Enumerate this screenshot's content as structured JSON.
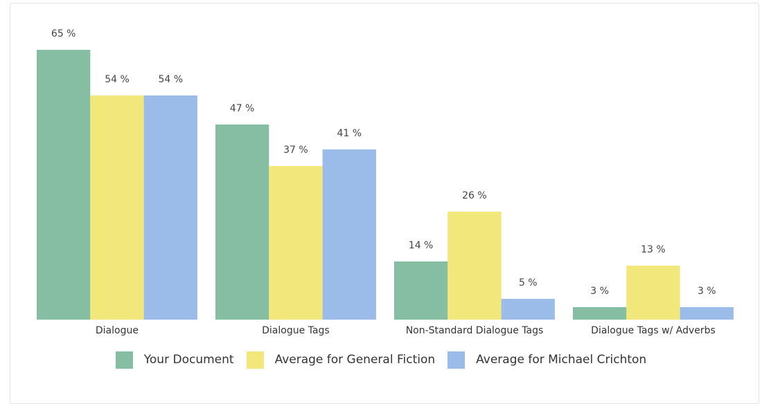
{
  "chart_data": {
    "type": "bar",
    "categories": [
      "Dialogue",
      "Dialogue Tags",
      "Non-Standard Dialogue Tags",
      "Dialogue Tags w/ Adverbs"
    ],
    "series": [
      {
        "name": "Your Document",
        "color": "#85bea3",
        "values": [
          65,
          47,
          14,
          3
        ],
        "labels": [
          "65 %",
          "47 %",
          "14 %",
          "3 %"
        ]
      },
      {
        "name": "Average for General Fiction",
        "color": "#f1e77a",
        "values": [
          54,
          37,
          26,
          13
        ],
        "labels": [
          "54 %",
          "37 %",
          "26 %",
          "13 %"
        ]
      },
      {
        "name": "Average for Michael Crichton",
        "color": "#9bbbe9",
        "values": [
          54,
          41,
          5,
          3
        ],
        "labels": [
          "54 %",
          "41 %",
          "5 %",
          "3 %"
        ]
      }
    ],
    "title": "",
    "xlabel": "",
    "ylabel": "",
    "ylim": [
      0,
      65
    ],
    "grid": false,
    "legend_position": "bottom"
  }
}
